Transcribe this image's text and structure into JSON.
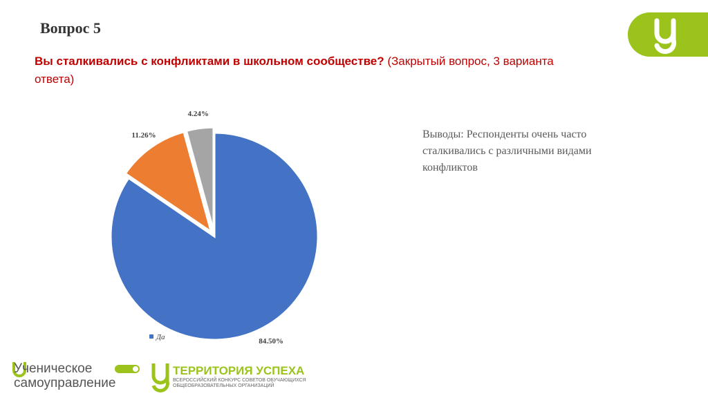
{
  "slide": {
    "title": "Вопрос 5",
    "question": "Вы сталкивались с конфликтами в школьном сообществе?",
    "question_note": "(Закрытый вопрос, 3 варианта ответа)",
    "conclusion": "Выводы: Респонденты очень часто сталкивались с различными видами конфликтов"
  },
  "footer": {
    "logo1_line1": "Ученическое",
    "logo1_line2": "самоуправление",
    "logo2_title": "ТЕРРИТОРИЯ УСПЕХА",
    "logo2_line1": "ВСЕРОССИЙСКИЙ КОНКУРС СОВЕТОВ ОБУЧАЮЩИХСЯ",
    "logo2_line2": "ОБЩЕОБРАЗОВАТЕЛЬНЫХ ОРГАНИЗАЦИЙ"
  },
  "chart_data": {
    "type": "pie",
    "categories": [
      "Да",
      null,
      null
    ],
    "values": [
      84.5,
      11.26,
      4.24
    ],
    "value_labels": [
      "84.50%",
      "11.26%",
      "4.24%"
    ],
    "colors": [
      "#4472c4",
      "#ed7d31",
      "#a5a5a5"
    ],
    "legend": "bottom-left"
  }
}
